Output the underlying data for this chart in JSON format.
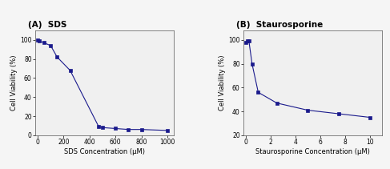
{
  "panel_a": {
    "title": "(A)  SDS",
    "xlabel": "SDS Concentration (μM)",
    "ylabel": "Cell Viability (%)",
    "x": [
      0,
      10,
      50,
      100,
      150,
      250,
      470,
      500,
      600,
      700,
      800,
      1000
    ],
    "y": [
      100,
      99,
      97,
      94,
      82,
      68,
      9,
      8,
      7,
      6,
      6,
      5
    ],
    "xlim": [
      -20,
      1050
    ],
    "ylim": [
      0,
      110
    ],
    "xticks": [
      0,
      200,
      400,
      600,
      800,
      1000
    ],
    "yticks": [
      0,
      20,
      40,
      60,
      80,
      100
    ]
  },
  "panel_b": {
    "title": "(B)  Staurosporine",
    "xlabel": "Staurosporine Concentration (μM)",
    "ylabel": "Cell Viability (%)",
    "x": [
      0,
      0.1,
      0.25,
      0.5,
      1.0,
      2.5,
      5.0,
      7.5,
      10.0
    ],
    "y": [
      98,
      99,
      99,
      80,
      56,
      47,
      41,
      38,
      35
    ],
    "xlim": [
      -0.2,
      11
    ],
    "ylim": [
      20,
      108
    ],
    "xticks": [
      0,
      2,
      4,
      6,
      8,
      10
    ],
    "yticks": [
      20,
      40,
      60,
      80,
      100
    ]
  },
  "line_color": "#1a1a8c",
  "marker": "s",
  "markersize": 3.0,
  "linewidth": 0.8,
  "title_fontsize": 7.5,
  "label_fontsize": 6.0,
  "tick_fontsize": 5.5,
  "bg_color": "#f0f0f0"
}
